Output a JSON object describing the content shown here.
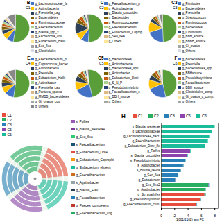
{
  "chart_data": [
    {
      "type": "pie",
      "title": "B",
      "subtitle": "C1",
      "categories": [
        null,
        "g_Lachnospiraceae_fa",
        "g_Actinobacteria",
        "g_Prevotella_cag",
        "g_Bacteroidetes",
        "g_Ruminococcaceae",
        "g_Faecalibacterium",
        "g_Blautia_spp_x",
        "g_Escherichia_coli",
        "g_Eubacterium_Hallii",
        "g_Seo_flea",
        "g_Clostridiales",
        null,
        null
      ],
      "values": [
        52.5,
        8.0,
        6.7,
        5.3,
        4.1,
        3.5,
        2.8,
        2.1,
        1.8,
        1.4,
        0.7,
        0.4,
        0.4,
        9.8
      ],
      "colors": [
        "#5a9e3a",
        "#4472c4",
        "#ffc000",
        "#2e4057",
        "#7f6000",
        "#c55a11",
        "#a9d18e",
        "#264478",
        "#deb887",
        "#ffe699",
        "#a5a5a5",
        "#d6dce4",
        "#bdd7ee",
        "#888888"
      ]
    },
    {
      "type": "pie",
      "title": "C",
      "subtitle": "C2",
      "categories": [
        null,
        "g_Faecalibacterium_p",
        "g_Actinobacteria",
        "g_Blautia_coccoides",
        "g_Bacteroides",
        "g_Ruminococcaceae",
        "g_Faecalibacterium",
        "g_Eubacterium_Coprop",
        "g_Seo_flea",
        "g_Others",
        null,
        null,
        null
      ],
      "values": [
        51.0,
        9.0,
        8.4,
        13.2,
        5.1,
        4.2,
        2.5,
        1.8,
        0.9,
        0.6,
        0.4,
        0.3,
        2.6
      ],
      "colors": [
        "#5a9e3a",
        "#4472c4",
        "#ffc000",
        "#2e4057",
        "#7f6000",
        "#c55a11",
        "#a9d18e",
        "#264478",
        "#deb887",
        "#ffe699",
        "#a5a5a5",
        "#d6dce4",
        "#888888"
      ]
    },
    {
      "type": "pie",
      "title": "C3",
      "subtitle": "C3",
      "categories": [
        null,
        "g_Firmicutes",
        "g_Bacteroidetes",
        "g_Prevotella",
        "g_Streptococcus",
        "g_Ruminococcus",
        "g_Bacteroides",
        "g_Clostridium",
        "g_BBH_source",
        "g_BBBB_source",
        "g_Gi_ovatus",
        "g_Others",
        null
      ],
      "values": [
        49.4,
        20.7,
        12.7,
        4.2,
        3.1,
        2.0,
        1.5,
        0.8,
        0.6,
        0.4,
        0.3,
        0.2,
        4.1
      ],
      "colors": [
        "#5a9e3a",
        "#4472c4",
        "#ffc000",
        "#2e4057",
        "#7f6000",
        "#c55a11",
        "#a9d18e",
        "#264478",
        "#deb887",
        "#ffe699",
        "#a5a5a5",
        "#d6dce4",
        "#888888"
      ]
    },
    {
      "type": "pie",
      "title": "E",
      "subtitle": "C4",
      "categories": [
        null,
        "g_Faecalibacterium_p",
        "g_Coprococcus_bacter",
        "g_Actinobacteria",
        "g_Prevotella",
        "g_Eubacterium_Hallii",
        "g_Actinobacter",
        "g_Prevotella_cag",
        "g_Pantoea_sporea",
        "g_MMBB_bacteroidetes",
        "g_Gi_ovatus_cog",
        "g_Others"
      ],
      "values": [
        52.4,
        10.8,
        8.0,
        5.2,
        4.1,
        3.5,
        2.8,
        1.8,
        1.4,
        0.8,
        0.4,
        8.8
      ],
      "colors": [
        "#5a9e3a",
        "#4472c4",
        "#ffc000",
        "#2e4057",
        "#7f6000",
        "#c55a11",
        "#a9d18e",
        "#264478",
        "#deb887",
        "#ffe699",
        "#a5a5a5",
        "#888888"
      ]
    },
    {
      "type": "pie",
      "title": "C5",
      "subtitle": "C5",
      "categories": [
        null,
        "g_Bacteroidetes",
        "g_Actinobacteria",
        "g_Bacteroidales_spp",
        "g_Actinobacter",
        "g_Eubacterium_Doré",
        "g_S_N_P",
        "g_Pseudobutyrivibrio",
        "g_Faecalibacterium_c",
        "g_BBH_source",
        "g_Others",
        null,
        null
      ],
      "values": [
        46.2,
        20.8,
        10.5,
        6.8,
        4.9,
        3.2,
        2.1,
        1.5,
        0.9,
        0.6,
        0.4,
        0.3,
        1.8
      ],
      "colors": [
        "#5a9e3a",
        "#4472c4",
        "#ffc000",
        "#2e4057",
        "#7f6000",
        "#c55a11",
        "#a9d18e",
        "#264478",
        "#deb887",
        "#ffe699",
        "#a5a5a5",
        "#d6dce4",
        "#888888"
      ]
    },
    {
      "type": "pie",
      "title": "F",
      "subtitle": "C6",
      "categories": [
        null,
        "g_Bacteroidetes",
        "g_Prevotella",
        "g_Bacteroidales_spp",
        "g_BBHsource",
        "g_Pseudobutyrivibrio",
        "g_Faecalibacterium",
        "g_BBH_source",
        "g_Clostridiales_comp",
        "g_Gi_ovatus_c_comp.",
        "g_Others",
        null,
        null
      ],
      "values": [
        46.4,
        22.2,
        10.8,
        6.2,
        4.5,
        3.2,
        1.8,
        1.4,
        0.9,
        0.7,
        0.4,
        0.3,
        1.2
      ],
      "colors": [
        "#5a9e3a",
        "#4472c4",
        "#ffc000",
        "#2e4057",
        "#7f6000",
        "#c55a11",
        "#a9d18e",
        "#264478",
        "#deb887",
        "#ffe699",
        "#a5a5a5",
        "#d6dce4",
        "#888888"
      ]
    },
    {
      "type": "ring",
      "categories": [
        "C1",
        "C2",
        "C3",
        "C5",
        "C6"
      ],
      "colors": [
        "#e74c3c",
        "#27ae60",
        "#2980b9",
        "#8e44ad",
        "#1abc9c"
      ]
    },
    {
      "type": "legend",
      "categories": [
        "s_Pollies",
        "s_Blautia_wexlerae",
        "g_Seo_flea",
        "s_Faecalibacterium",
        "g_Eubacterium_Dore",
        "g_Eubacterium_Coprophi",
        "g_Eubacterium_eligens",
        "g_Faecalibacterium",
        "s_Agathobacter",
        "g_Blautia_Flav",
        "g_Faecalibacterium",
        "g_Faeces_competens",
        "g_Faecalibacterium_cog"
      ],
      "colors": [
        "#9b59b6",
        "#7d3c98",
        "#2ecc71",
        "#1a5276",
        "#e74c3c",
        "#f39c12",
        "#1abc9c",
        "#ca6f1e",
        "#95a5a6",
        "#2c3e50",
        "#2980b9",
        "#c0392b",
        "#27ae60"
      ]
    },
    {
      "type": "bar",
      "orientation": "horizontal",
      "stacked": true,
      "title": "H",
      "xlabel": "(2001/2102) avg FC",
      "categories": [
        "s_Blautia_wexlerae",
        "g_Lachnospiraceae",
        "g_Lachnospiraceae_bact.",
        "g_Faecalibacterium",
        "g_Eubacterium_Dore_ffe",
        "g_Rolfes",
        "s_Blautia_coccoides",
        "s_Pseudobutyrivibrio",
        "s_Agathobacter",
        "s_Blautia_faecis",
        "g_Seo_flea",
        "g_Eubacterium",
        "g_Seo_flea2",
        "g_Agathobacter",
        "g_Sp_agathifex",
        "g_Pseudobutyrivibrio",
        "g_Faecalibacterium_cum."
      ],
      "series": [
        {
          "name": "C1",
          "color": "#e74c3c",
          "values": [
            0.05,
            0.05,
            0.05,
            0.05,
            0.05,
            0.05,
            0.05,
            0.05,
            0.05,
            0.05,
            0.05,
            0.05,
            0.05,
            0.05,
            6.5,
            5.8,
            5.2
          ]
        },
        {
          "name": "C2",
          "color": "#27ae60",
          "values": [
            0.05,
            0.05,
            0.05,
            0.05,
            0.05,
            0.05,
            0.05,
            0.05,
            0.05,
            0.05,
            0.05,
            0.05,
            7.0,
            6.5,
            0.05,
            0.05,
            0.05
          ]
        },
        {
          "name": "C3",
          "color": "#2980b9",
          "values": [
            0.05,
            0.05,
            0.05,
            0.05,
            0.05,
            0.05,
            0.05,
            3.5,
            3.2,
            2.8,
            2.4,
            2.0,
            0.05,
            0.05,
            0.05,
            0.05,
            0.05
          ]
        },
        {
          "name": "C5",
          "color": "#8e44ad",
          "values": [
            0.08,
            0.07,
            0.07,
            0.06,
            0.07,
            4.2,
            3.8,
            0.05,
            0.05,
            0.05,
            0.05,
            0.05,
            0.05,
            0.05,
            0.05,
            0.05,
            0.05
          ]
        },
        {
          "name": "C6",
          "color": "#1abc9c",
          "values": [
            7.8,
            7.4,
            7.0,
            6.8,
            6.4,
            0.08,
            0.07,
            0.05,
            0.05,
            0.05,
            0.05,
            0.05,
            0.05,
            0.05,
            0.05,
            0.05,
            0.05
          ]
        }
      ],
      "xlim": [
        0,
        8.5
      ],
      "xticks": [
        0,
        2,
        4,
        6,
        8
      ]
    }
  ]
}
